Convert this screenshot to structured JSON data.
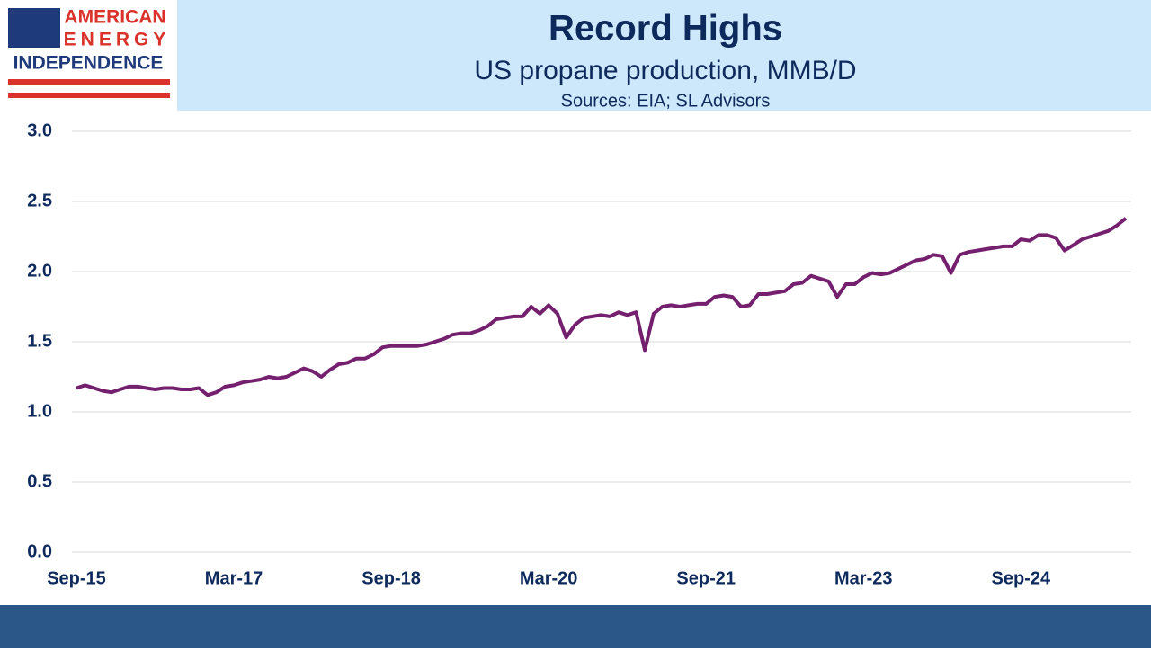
{
  "logo": {
    "line1": "AMERICAN",
    "line2": "ENERGY",
    "line3": "INDEPENDENCE"
  },
  "chart_data": {
    "type": "line",
    "title": "Record Highs",
    "subtitle": "US propane production, MMB/D",
    "source": "Sources: EIA; SL Advisors",
    "categories": [
      "Sep-15",
      null,
      null,
      null,
      null,
      null,
      null,
      null,
      null,
      null,
      null,
      null,
      null,
      null,
      null,
      null,
      null,
      null,
      "Mar-17",
      null,
      null,
      null,
      null,
      null,
      null,
      null,
      null,
      null,
      null,
      null,
      null,
      null,
      null,
      null,
      null,
      null,
      "Sep-18",
      null,
      null,
      null,
      null,
      null,
      null,
      null,
      null,
      null,
      null,
      null,
      null,
      null,
      null,
      null,
      null,
      null,
      "Mar-20",
      null,
      null,
      null,
      null,
      null,
      null,
      null,
      null,
      null,
      null,
      null,
      null,
      null,
      null,
      null,
      null,
      null,
      "Sep-21",
      null,
      null,
      null,
      null,
      null,
      null,
      null,
      null,
      null,
      null,
      null,
      null,
      null,
      null,
      null,
      null,
      null,
      "Mar-23",
      null,
      null,
      null,
      null,
      null,
      null,
      null,
      null,
      null,
      null,
      null,
      null,
      null,
      null,
      null,
      null,
      null,
      "Sep-24",
      null,
      null,
      null,
      null,
      null,
      null,
      null,
      null,
      null,
      null,
      null,
      null
    ],
    "series": [
      {
        "name": "US propane production",
        "color": "#74206e",
        "values": [
          1.17,
          1.19,
          1.17,
          1.15,
          1.14,
          1.16,
          1.18,
          1.18,
          1.17,
          1.16,
          1.17,
          1.17,
          1.16,
          1.16,
          1.17,
          1.12,
          1.14,
          1.18,
          1.19,
          1.21,
          1.22,
          1.23,
          1.25,
          1.24,
          1.25,
          1.28,
          1.31,
          1.29,
          1.25,
          1.3,
          1.34,
          1.35,
          1.38,
          1.38,
          1.41,
          1.46,
          1.47,
          1.47,
          1.47,
          1.47,
          1.48,
          1.5,
          1.52,
          1.55,
          1.56,
          1.56,
          1.58,
          1.61,
          1.66,
          1.67,
          1.68,
          1.68,
          1.75,
          1.7,
          1.76,
          1.7,
          1.53,
          1.62,
          1.67,
          1.68,
          1.69,
          1.68,
          1.71,
          1.69,
          1.71,
          1.44,
          1.7,
          1.75,
          1.76,
          1.75,
          1.76,
          1.77,
          1.77,
          1.82,
          1.83,
          1.82,
          1.75,
          1.76,
          1.84,
          1.84,
          1.85,
          1.86,
          1.91,
          1.92,
          1.97,
          1.95,
          1.93,
          1.82,
          1.91,
          1.91,
          1.96,
          1.99,
          1.98,
          1.99,
          2.02,
          2.05,
          2.08,
          2.09,
          2.12,
          2.11,
          1.99,
          2.12,
          2.14,
          2.15,
          2.16,
          2.17,
          2.18,
          2.18,
          2.23,
          2.22,
          2.26,
          2.26,
          2.24,
          2.15,
          2.19,
          2.23,
          2.25,
          2.27,
          2.29,
          2.33,
          2.38
        ]
      }
    ],
    "ylim": [
      0,
      3
    ],
    "yticks": [
      {
        "value": 0,
        "label": "0.0"
      },
      0.5,
      {
        "value": 1,
        "label": "1.0"
      },
      1.5,
      {
        "value": 2,
        "label": "2.0"
      },
      2.5,
      {
        "value": 3,
        "label": "3.0"
      }
    ],
    "grid": true
  }
}
